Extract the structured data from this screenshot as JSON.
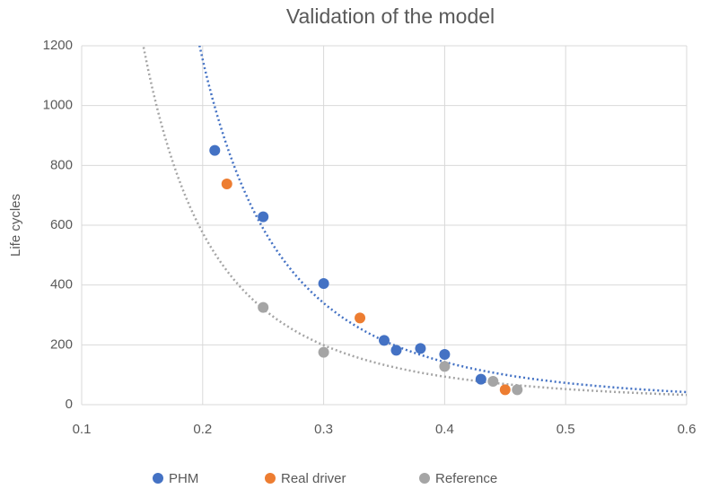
{
  "chart_data": {
    "type": "scatter",
    "title": "Validation of the model",
    "y_label": "Life cycles",
    "xlim": [
      0.1,
      0.6
    ],
    "xticks": [
      0.1,
      0.2,
      0.3,
      0.4,
      0.5,
      0.6
    ],
    "ylim": [
      0,
      1200
    ],
    "yticks": [
      0,
      200,
      400,
      600,
      800,
      1000,
      1200
    ],
    "grid": true,
    "legend": "bottom",
    "series": [
      {
        "name": "PHM",
        "color": "#4472c4",
        "trendline": "power",
        "x": [
          0.21,
          0.25,
          0.3,
          0.35,
          0.36,
          0.38,
          0.4,
          0.43
        ],
        "values": [
          850,
          628,
          405,
          215,
          182,
          188,
          168,
          85
        ]
      },
      {
        "name": "Real driver",
        "color": "#ed7d31",
        "x": [
          0.22,
          0.33,
          0.45
        ],
        "values": [
          738,
          290,
          50
        ]
      },
      {
        "name": "Reference",
        "color": "#a5a5a5",
        "trendline": "power",
        "x": [
          0.25,
          0.3,
          0.4,
          0.44,
          0.46
        ],
        "values": [
          325,
          175,
          128,
          78,
          50
        ]
      }
    ]
  }
}
